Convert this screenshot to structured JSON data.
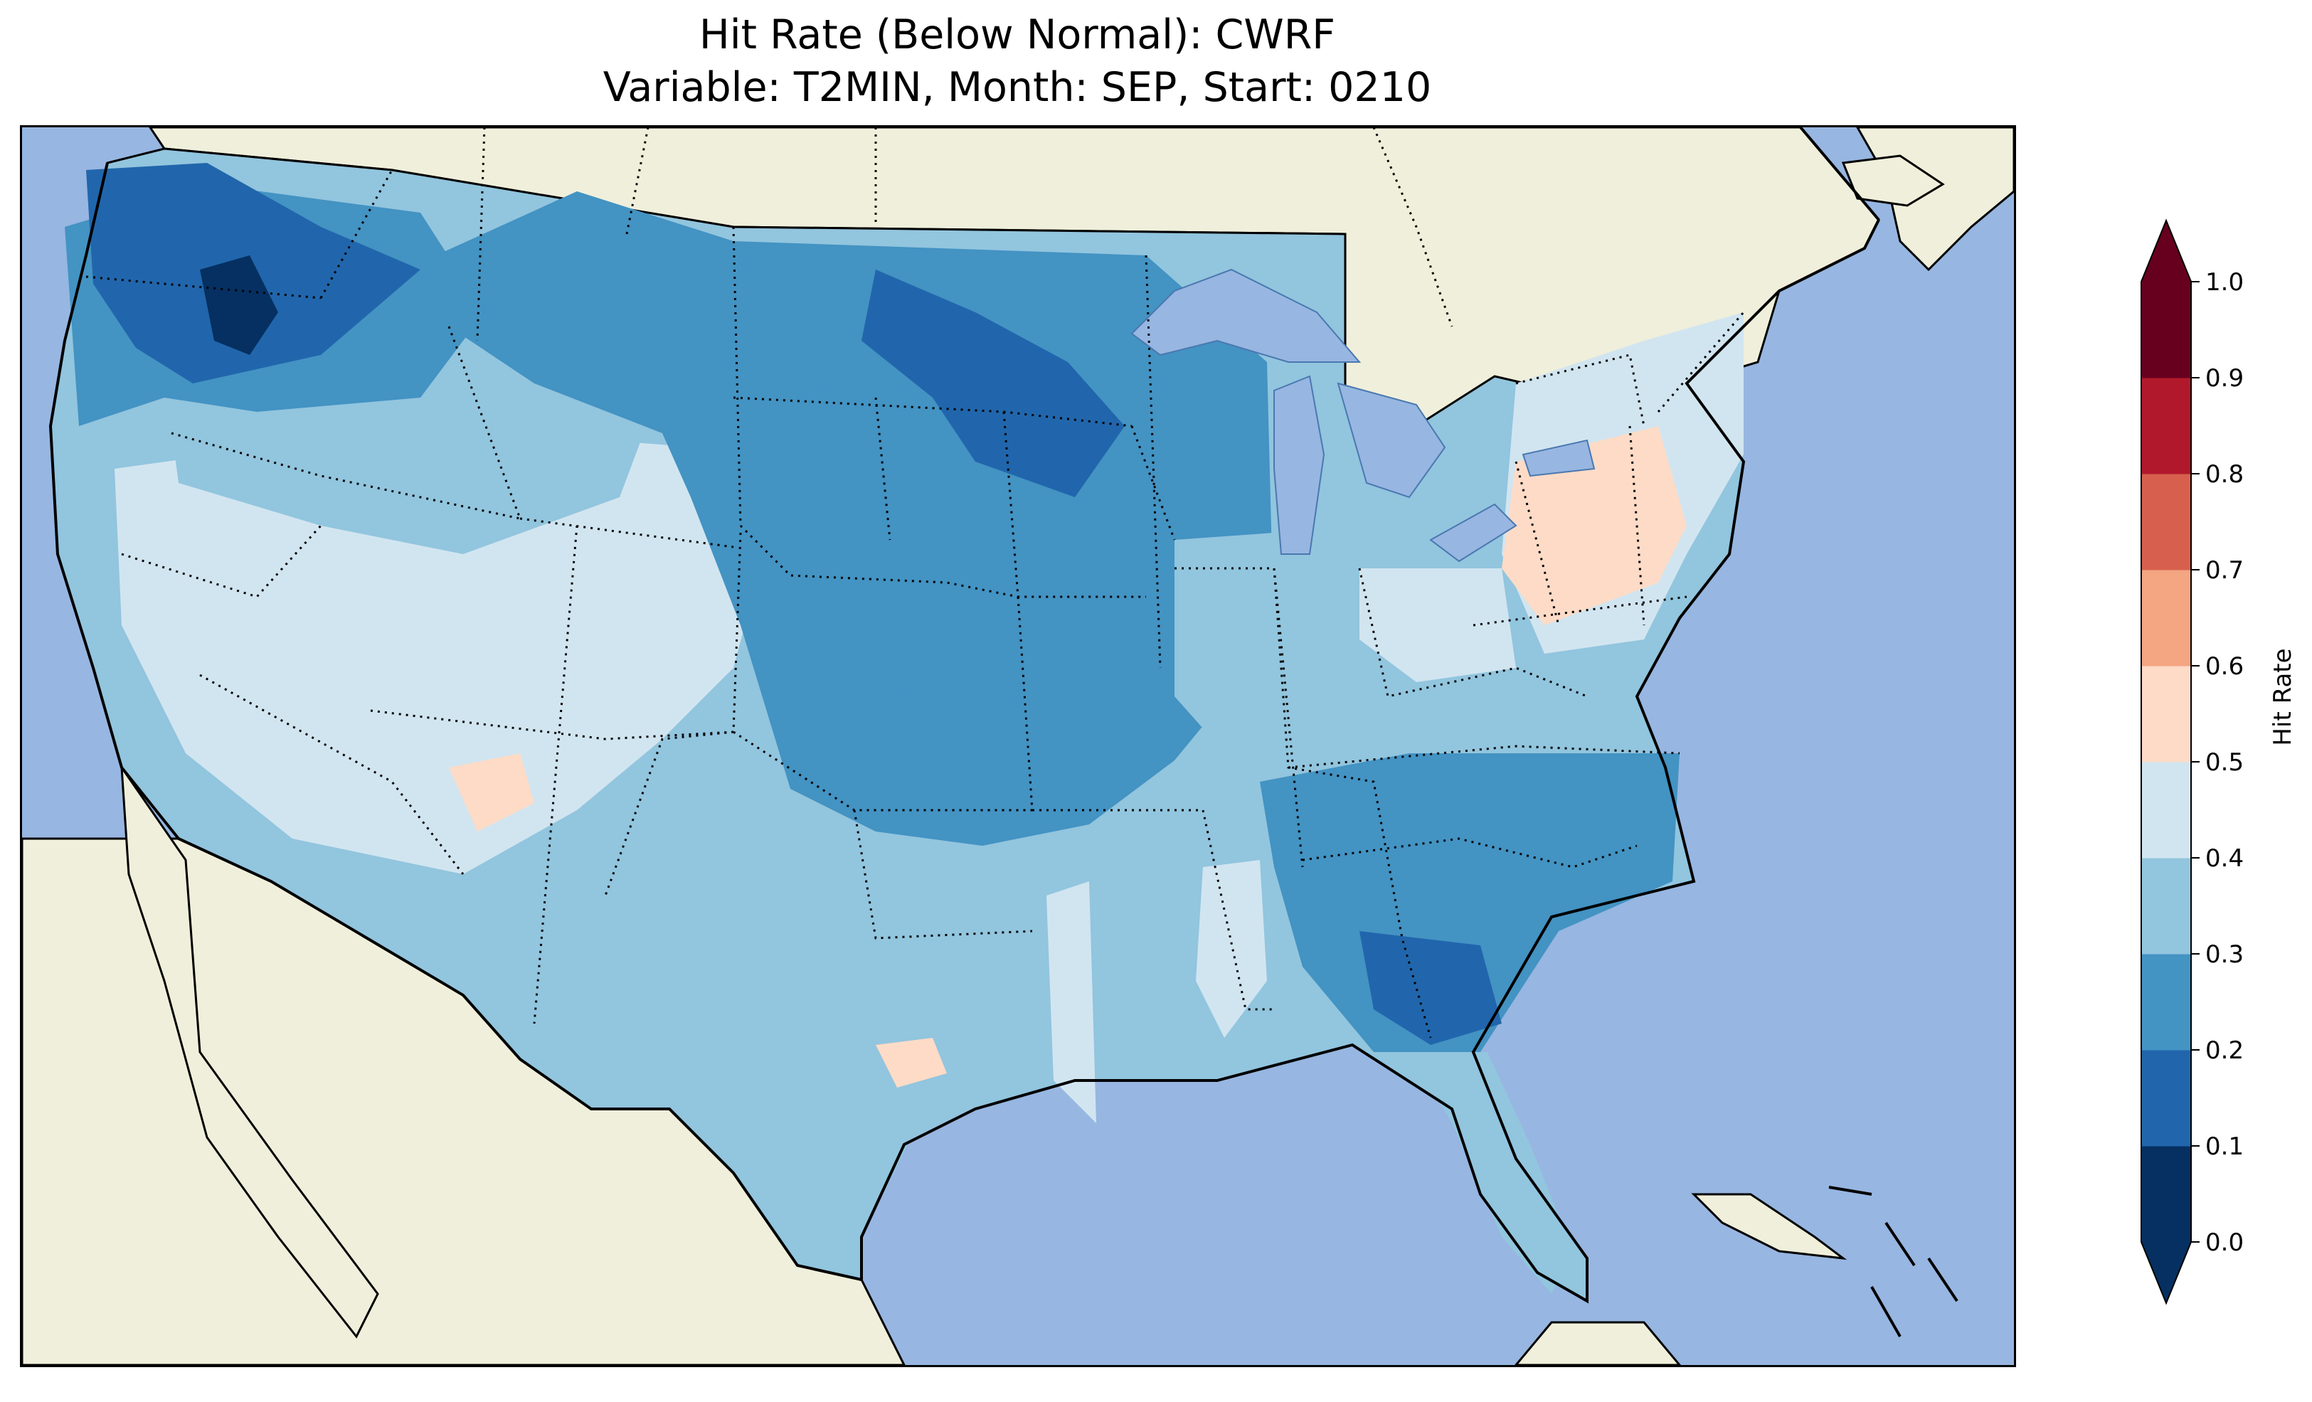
{
  "title": {
    "line1": "Hit Rate (Below Normal): CWRF",
    "line2": "Variable: T2MIN, Month: SEP, Start: 0210"
  },
  "colors": {
    "ocean": "#97b6e1",
    "land": "#efefdb",
    "lakes": "#97b6e1",
    "boundary": "#000000"
  },
  "colorbar": {
    "label": "Hit Rate",
    "ticks": [
      "0.0",
      "0.1",
      "0.2",
      "0.3",
      "0.4",
      "0.5",
      "0.6",
      "0.7",
      "0.8",
      "0.9",
      "1.0"
    ],
    "colors": [
      "#053061",
      "#2166ac",
      "#4393c3",
      "#92c5de",
      "#d1e5f0",
      "#fddbc7",
      "#f4a582",
      "#d6604d",
      "#b2182b",
      "#67001f"
    ],
    "extend": "both"
  },
  "regions": [
    {
      "name": "northwest",
      "level": "0.1-0.2"
    },
    {
      "name": "interior-northwest",
      "level": "0.2-0.3"
    },
    {
      "name": "northern-plains",
      "level": "0.2-0.3"
    },
    {
      "name": "central-plains",
      "level": "0.2-0.3"
    },
    {
      "name": "southwest",
      "level": "0.4-0.5"
    },
    {
      "name": "great-basin",
      "level": "0.3-0.4"
    },
    {
      "name": "texas",
      "level": "0.3-0.4"
    },
    {
      "name": "northeast",
      "level": "0.4-0.5"
    },
    {
      "name": "new-york-pennsylvania",
      "level": "0.5-0.6"
    },
    {
      "name": "southeast",
      "level": "0.2-0.3"
    },
    {
      "name": "florida",
      "level": "0.3-0.4"
    }
  ]
}
